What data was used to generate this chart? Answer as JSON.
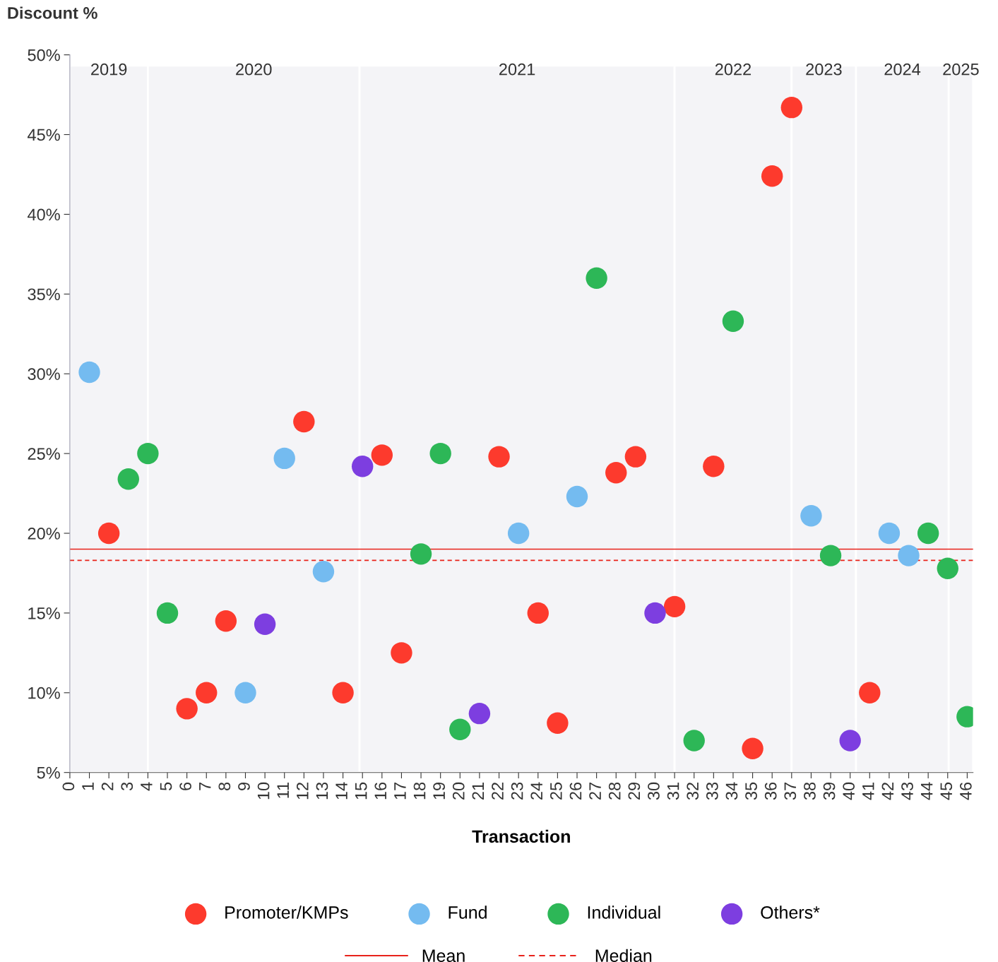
{
  "chart_data": {
    "type": "scatter",
    "xlabel": "Transaction",
    "ylabel": "Discount %",
    "xlim": [
      0,
      46.3
    ],
    "ylim": [
      5,
      50
    ],
    "xticks": [
      0,
      1,
      2,
      3,
      4,
      5,
      6,
      7,
      8,
      9,
      10,
      11,
      12,
      13,
      14,
      15,
      16,
      17,
      18,
      19,
      20,
      21,
      22,
      23,
      24,
      25,
      26,
      27,
      28,
      29,
      30,
      31,
      32,
      33,
      34,
      35,
      36,
      37,
      38,
      39,
      40,
      41,
      42,
      43,
      44,
      45,
      46
    ],
    "yticks": [
      {
        "value": 5,
        "label": "5%"
      },
      {
        "value": 10,
        "label": "10%"
      },
      {
        "value": 15,
        "label": "15%"
      },
      {
        "value": 20,
        "label": "20%"
      },
      {
        "value": 25,
        "label": "25%"
      },
      {
        "value": 30,
        "label": "30%"
      },
      {
        "value": 35,
        "label": "35%"
      },
      {
        "value": 40,
        "label": "40%"
      },
      {
        "value": 45,
        "label": "45%"
      },
      {
        "value": 50,
        "label": "50%"
      }
    ],
    "marker": "circle",
    "legend": "bottom",
    "grid": false,
    "series": [
      {
        "name": "Promoter/KMPs",
        "color": "#fd3a2d",
        "x": [
          2,
          6,
          7,
          8,
          12,
          14,
          16,
          17,
          22,
          24,
          25,
          28,
          29,
          31,
          33,
          35,
          36,
          37,
          41
        ],
        "values": [
          20.0,
          9.0,
          10.0,
          14.5,
          27.0,
          10.0,
          24.9,
          12.5,
          24.8,
          15.0,
          8.1,
          23.8,
          24.8,
          15.4,
          24.2,
          6.5,
          42.4,
          46.7,
          10.0
        ]
      },
      {
        "name": "Fund",
        "color": "#74bbf0",
        "x": [
          1,
          9,
          11,
          13,
          23,
          26,
          38,
          42,
          43
        ],
        "values": [
          30.1,
          10.0,
          24.7,
          17.6,
          20.0,
          22.3,
          21.1,
          20.0,
          18.6
        ]
      },
      {
        "name": "Individual",
        "color": "#2db757",
        "x": [
          3,
          4,
          5,
          18,
          19,
          20,
          27,
          32,
          34,
          39,
          44,
          45,
          46
        ],
        "values": [
          23.4,
          25.0,
          15.0,
          18.7,
          25.0,
          7.7,
          36.0,
          7.0,
          33.3,
          18.6,
          20.0,
          17.8,
          8.5
        ]
      },
      {
        "name": "Others*",
        "color": "#7d3ee0",
        "x": [
          10,
          15,
          21,
          30,
          40
        ],
        "values": [
          14.3,
          24.2,
          8.7,
          15.0,
          7.0
        ]
      }
    ],
    "ref_lines": [
      {
        "axis": "y",
        "value": 19.0,
        "label": "Mean",
        "color": "#e8231b",
        "line_style": "solid"
      },
      {
        "axis": "y",
        "value": 18.3,
        "label": "Median",
        "color": "#e8231b",
        "line_style": "dashed"
      }
    ],
    "bands": [
      {
        "axis": "x",
        "from": 0,
        "to": 4,
        "label": "2019",
        "color": "#f4f4f7"
      },
      {
        "axis": "x",
        "from": 4,
        "to": 14.85,
        "label": "2020",
        "color": "#f4f4f7"
      },
      {
        "axis": "x",
        "from": 14.85,
        "to": 31,
        "label": "2021",
        "color": "#f4f4f7"
      },
      {
        "axis": "x",
        "from": 31,
        "to": 37,
        "label": "2022",
        "color": "#f4f4f7"
      },
      {
        "axis": "x",
        "from": 37,
        "to": 40.3,
        "label": "2023",
        "color": "#f4f4f7"
      },
      {
        "axis": "x",
        "from": 40.3,
        "to": 45.05,
        "label": "2024",
        "color": "#f4f4f7"
      },
      {
        "axis": "x",
        "from": 45.05,
        "to": 46.3,
        "label": "2025",
        "color": "#f4f4f7"
      }
    ]
  }
}
